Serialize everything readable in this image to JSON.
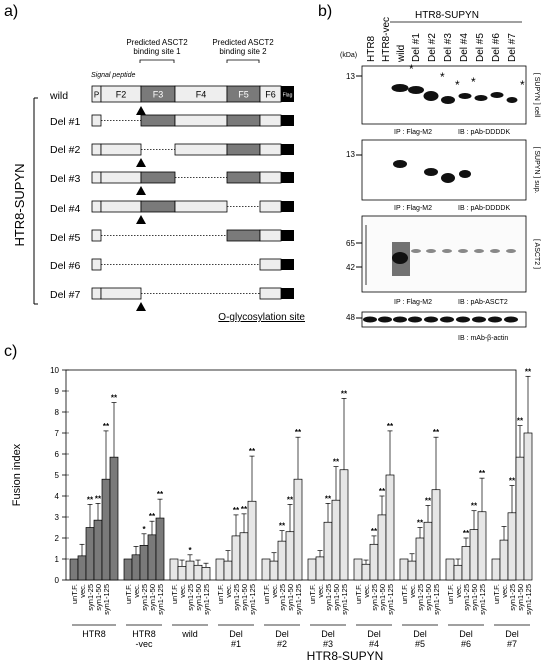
{
  "panel_a": {
    "label": "a)",
    "vertical_label": "HTR8-SUPYN",
    "signal_peptide": "Signal peptide",
    "site1_line1": "Predicted ASCT2",
    "site1_line2": "binding site 1",
    "site2_line1": "Predicted ASCT2",
    "site2_line2": "binding site 2",
    "segments": [
      "P",
      "F2",
      "F3",
      "F4",
      "F5",
      "F6",
      "Flag"
    ],
    "rows": [
      "wild",
      "Del #1",
      "Del #2",
      "Del #3",
      "Del #4",
      "Del #5",
      "Del #6",
      "Del #7"
    ],
    "oglyco": "O-glycosylation site"
  },
  "panel_b": {
    "label": "b)",
    "kda": "(kDa)",
    "header_group": "HTR8-SUPYN",
    "lanes": [
      "HTR8",
      "HTR8-vec",
      "wild",
      "Del #1",
      "Del #2",
      "Del #3",
      "Del #4",
      "Del #5",
      "Del #6",
      "Del #7"
    ],
    "blot1": {
      "marker": "13",
      "ip": "IP : Flag-M2",
      "ib": "IB : pAb-DDDDK",
      "side": "[ SUPYN ] cell"
    },
    "blot2": {
      "marker": "13",
      "ip": "IP : Flag-M2",
      "ib": "IB : pAb-DDDDK",
      "side": "[ SUPYN ] sup."
    },
    "blot3": {
      "marker1": "65",
      "marker2": "42",
      "ip": "IP : Flag-M2",
      "ib": "IB : pAb-ASCT2",
      "side": "[ ASCT2 ]"
    },
    "blot4": {
      "marker": "48",
      "ib": "IB : mAb-β-actin"
    }
  },
  "chart_data": {
    "type": "bar",
    "panel_label": "c)",
    "ylabel": "Fusion index",
    "ylim": [
      0,
      10
    ],
    "yticks": [
      "0",
      "1",
      "2",
      "3",
      "4",
      "5",
      "6",
      "7",
      "8",
      "9",
      "10"
    ],
    "conditions": [
      "unT.F.",
      "vec.",
      "syn1-25",
      "syn1-50",
      "syn1-125"
    ],
    "groups": [
      {
        "name": "HTR8",
        "dark": true,
        "values": [
          1.0,
          1.15,
          2.5,
          2.85,
          4.8,
          5.85
        ],
        "errors": [
          0,
          0.55,
          1.1,
          0.8,
          2.3,
          2.6
        ],
        "cats": [
          "unT.F.",
          "vec.",
          "syn1-25",
          "syn1-50",
          "syn1-125",
          ""
        ],
        "stars": [
          "",
          "",
          "**",
          "**",
          "**",
          "**"
        ]
      },
      {
        "name": "HTR8 -vec",
        "dark": true,
        "values": [
          1.0,
          1.2,
          1.65,
          2.15,
          2.95
        ],
        "errors": [
          0,
          0.4,
          0.55,
          0.65,
          0.9
        ],
        "stars": [
          "",
          "",
          "*",
          "**",
          "**"
        ]
      },
      {
        "name": "wild",
        "dark": false,
        "values": [
          1.0,
          0.65,
          0.9,
          0.7,
          0.6
        ],
        "errors": [
          0,
          0.3,
          0.3,
          0.25,
          0.2
        ],
        "stars": [
          "",
          "",
          "*",
          "",
          ""
        ]
      },
      {
        "name": "Del #1",
        "dark": false,
        "values": [
          1.0,
          0.9,
          2.1,
          2.25,
          3.75
        ],
        "errors": [
          0,
          0.5,
          1.0,
          0.9,
          2.15
        ],
        "stars": [
          "",
          "",
          "**",
          "**",
          "**"
        ]
      },
      {
        "name": "Del #2",
        "dark": false,
        "values": [
          1.0,
          0.9,
          1.85,
          2.3,
          4.8
        ],
        "errors": [
          0,
          0.4,
          0.5,
          1.3,
          2.0
        ],
        "stars": [
          "",
          "",
          "**",
          "**",
          "**"
        ]
      },
      {
        "name": "Del #3",
        "dark": false,
        "values": [
          1.0,
          1.1,
          2.75,
          3.8,
          5.25
        ],
        "errors": [
          0,
          0.3,
          0.9,
          1.6,
          3.4
        ],
        "stars": [
          "",
          "",
          "**",
          "**",
          "**"
        ]
      },
      {
        "name": "Del #4",
        "dark": false,
        "values": [
          1.0,
          0.75,
          1.7,
          3.1,
          5.0
        ],
        "errors": [
          0,
          0.2,
          0.4,
          0.9,
          2.1
        ],
        "stars": [
          "",
          "",
          "**",
          "**",
          "**"
        ]
      },
      {
        "name": "Del #5",
        "dark": false,
        "values": [
          1.0,
          0.9,
          2.0,
          2.75,
          4.3
        ],
        "errors": [
          0,
          0.35,
          0.5,
          0.8,
          2.5
        ],
        "stars": [
          "",
          "",
          "**",
          "**",
          "**"
        ]
      },
      {
        "name": "Del #6",
        "dark": false,
        "values": [
          1.0,
          0.7,
          1.6,
          2.4,
          3.25
        ],
        "errors": [
          0,
          0.3,
          0.4,
          0.9,
          1.6
        ],
        "stars": [
          "",
          "",
          "**",
          "**",
          "**"
        ]
      },
      {
        "name": "Del #7",
        "dark": false,
        "values": [
          1.0,
          1.9,
          3.2,
          5.85,
          7.0
        ],
        "errors": [
          0,
          0.65,
          1.3,
          1.5,
          2.7
        ],
        "stars": [
          "",
          "",
          "**",
          "**",
          "**"
        ]
      }
    ],
    "bottom_group": "HTR8-SUPYN",
    "bar_colors": {
      "dark": "#7a7a7a",
      "light": "#e6e6e6"
    }
  }
}
